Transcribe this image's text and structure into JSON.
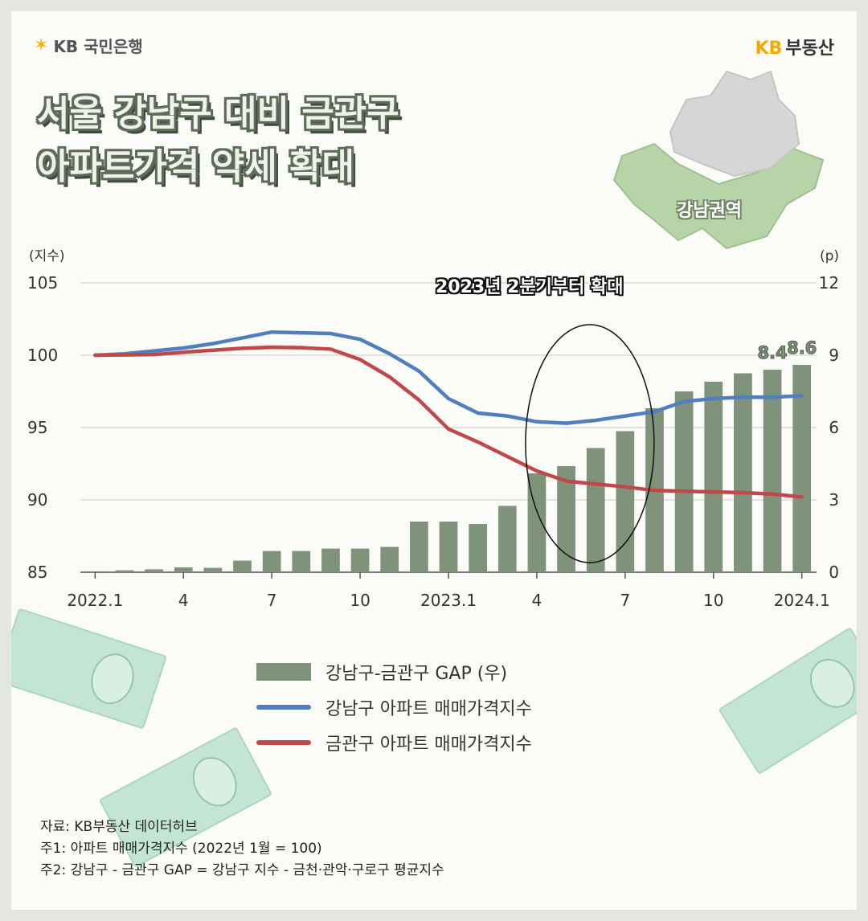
{
  "brand": {
    "left": "KB 국민은행",
    "right_kb": "KB",
    "right_name": "부동산"
  },
  "title": {
    "line1": "서울 강남구 대비 금관구",
    "line2": "아파트가격 약세 확대"
  },
  "map": {
    "label": "강남권역"
  },
  "annotation": "2023년 2분기부터 확대",
  "colors": {
    "bar": "#7f927a",
    "gangnam": "#4f7fbf",
    "geumgwan": "#c0474a"
  },
  "chart_data": {
    "type": "bar+line",
    "x": [
      "2022.1",
      "2022.2",
      "2022.3",
      "2022.4",
      "2022.5",
      "2022.6",
      "2022.7",
      "2022.8",
      "2022.9",
      "2022.10",
      "2022.11",
      "2022.12",
      "2023.1",
      "2023.2",
      "2023.3",
      "2023.4",
      "2023.5",
      "2023.6",
      "2023.7",
      "2023.8",
      "2023.9",
      "2023.10",
      "2023.11",
      "2023.12",
      "2024.1"
    ],
    "xtick_labels": [
      "2022.1",
      "4",
      "7",
      "10",
      "2023.1",
      "4",
      "7",
      "10",
      "2024.1"
    ],
    "xtick_index": [
      0,
      3,
      6,
      9,
      12,
      15,
      18,
      21,
      24
    ],
    "left_axis": {
      "unit": "(지수)",
      "min": 85,
      "max": 105,
      "ticks": [
        85,
        90,
        95,
        100,
        105
      ]
    },
    "right_axis": {
      "unit": "(p)",
      "min": 0,
      "max": 12,
      "ticks": [
        0,
        3,
        6,
        9,
        12
      ]
    },
    "series": [
      {
        "name": "강남구-금관구 GAP (우)",
        "kind": "bar",
        "axis": "right",
        "values": [
          0,
          0.08,
          0.12,
          0.2,
          0.18,
          0.48,
          0.88,
          0.88,
          0.98,
          0.98,
          1.05,
          2.1,
          2.1,
          2.0,
          2.75,
          4.1,
          4.4,
          5.15,
          5.85,
          6.8,
          7.5,
          7.9,
          8.25,
          8.4,
          8.6
        ]
      },
      {
        "name": "강남구 아파트 매매가격지수",
        "kind": "line",
        "axis": "left",
        "values": [
          100,
          100.1,
          100.3,
          100.5,
          100.8,
          101.2,
          101.6,
          101.55,
          101.5,
          101.1,
          100.1,
          98.9,
          97.0,
          96.0,
          95.8,
          95.4,
          95.3,
          95.5,
          95.8,
          96.1,
          96.8,
          97.0,
          97.1,
          97.1,
          97.2
        ]
      },
      {
        "name": "금관구 아파트 매매가격지수",
        "kind": "line",
        "axis": "left",
        "values": [
          100,
          100.02,
          100.05,
          100.2,
          100.35,
          100.48,
          100.55,
          100.52,
          100.42,
          99.7,
          98.5,
          96.9,
          94.9,
          94.0,
          93.0,
          92.0,
          91.3,
          91.1,
          90.9,
          90.65,
          90.6,
          90.55,
          90.5,
          90.4,
          90.2
        ]
      }
    ],
    "data_labels": [
      {
        "index": 23,
        "text": "8.4"
      },
      {
        "index": 24,
        "text": "8.6"
      }
    ],
    "legend_position": "bottom-center",
    "grid": true
  },
  "notes": [
    "자료: KB부동산 데이터허브",
    "주1: 아파트 매매가격지수 (2022년 1월 = 100)",
    "주2: 강남구 - 금관구 GAP = 강남구 지수 - 금천·관악·구로구 평균지수"
  ]
}
